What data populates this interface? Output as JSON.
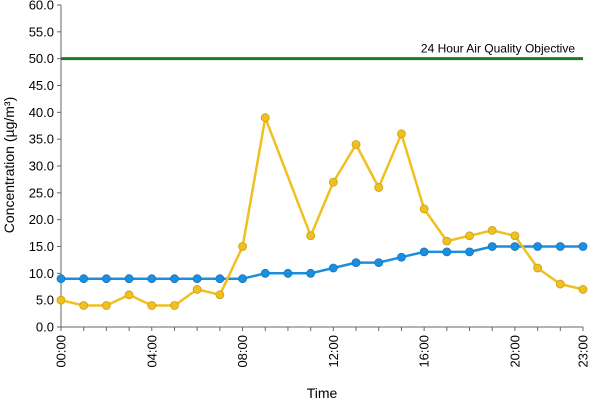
{
  "chart_data": {
    "type": "line",
    "xlabel": "Time",
    "ylabel": "Concentration (µg/m³)",
    "ylim": [
      0,
      60
    ],
    "yticks": [
      "0.0",
      "5.0",
      "10.0",
      "15.0",
      "20.0",
      "25.0",
      "30.0",
      "35.0",
      "40.0",
      "45.0",
      "50.0",
      "55.0",
      "60.0"
    ],
    "x": [
      0,
      1,
      2,
      3,
      4,
      5,
      6,
      7,
      8,
      9,
      10,
      11,
      12,
      13,
      14,
      15,
      16,
      17,
      18,
      19,
      20,
      21,
      22,
      23
    ],
    "xticks": [
      "00:00",
      "04:00",
      "08:00",
      "12:00",
      "16:00",
      "20:00",
      "23:00"
    ],
    "xtick_positions": [
      0,
      4,
      8,
      12,
      16,
      20,
      23
    ],
    "grid": false,
    "legend": "none",
    "series": [
      {
        "color": "#1a8fe0",
        "values": [
          9,
          9,
          9,
          9,
          9,
          9,
          9,
          9,
          9,
          10,
          10,
          10,
          11,
          12,
          12,
          13,
          14,
          14,
          14,
          15,
          15,
          15,
          15,
          15
        ]
      },
      {
        "color": "#f0c020",
        "values": [
          5,
          4,
          4,
          6,
          4,
          4,
          7,
          6,
          15,
          39,
          null,
          17,
          27,
          34,
          26,
          36,
          22,
          16,
          17,
          18,
          17,
          11,
          8,
          7
        ]
      }
    ],
    "reference_line": {
      "value": 50,
      "label": "24 Hour Air Quality Objective",
      "color": "#1e7a1e"
    }
  }
}
